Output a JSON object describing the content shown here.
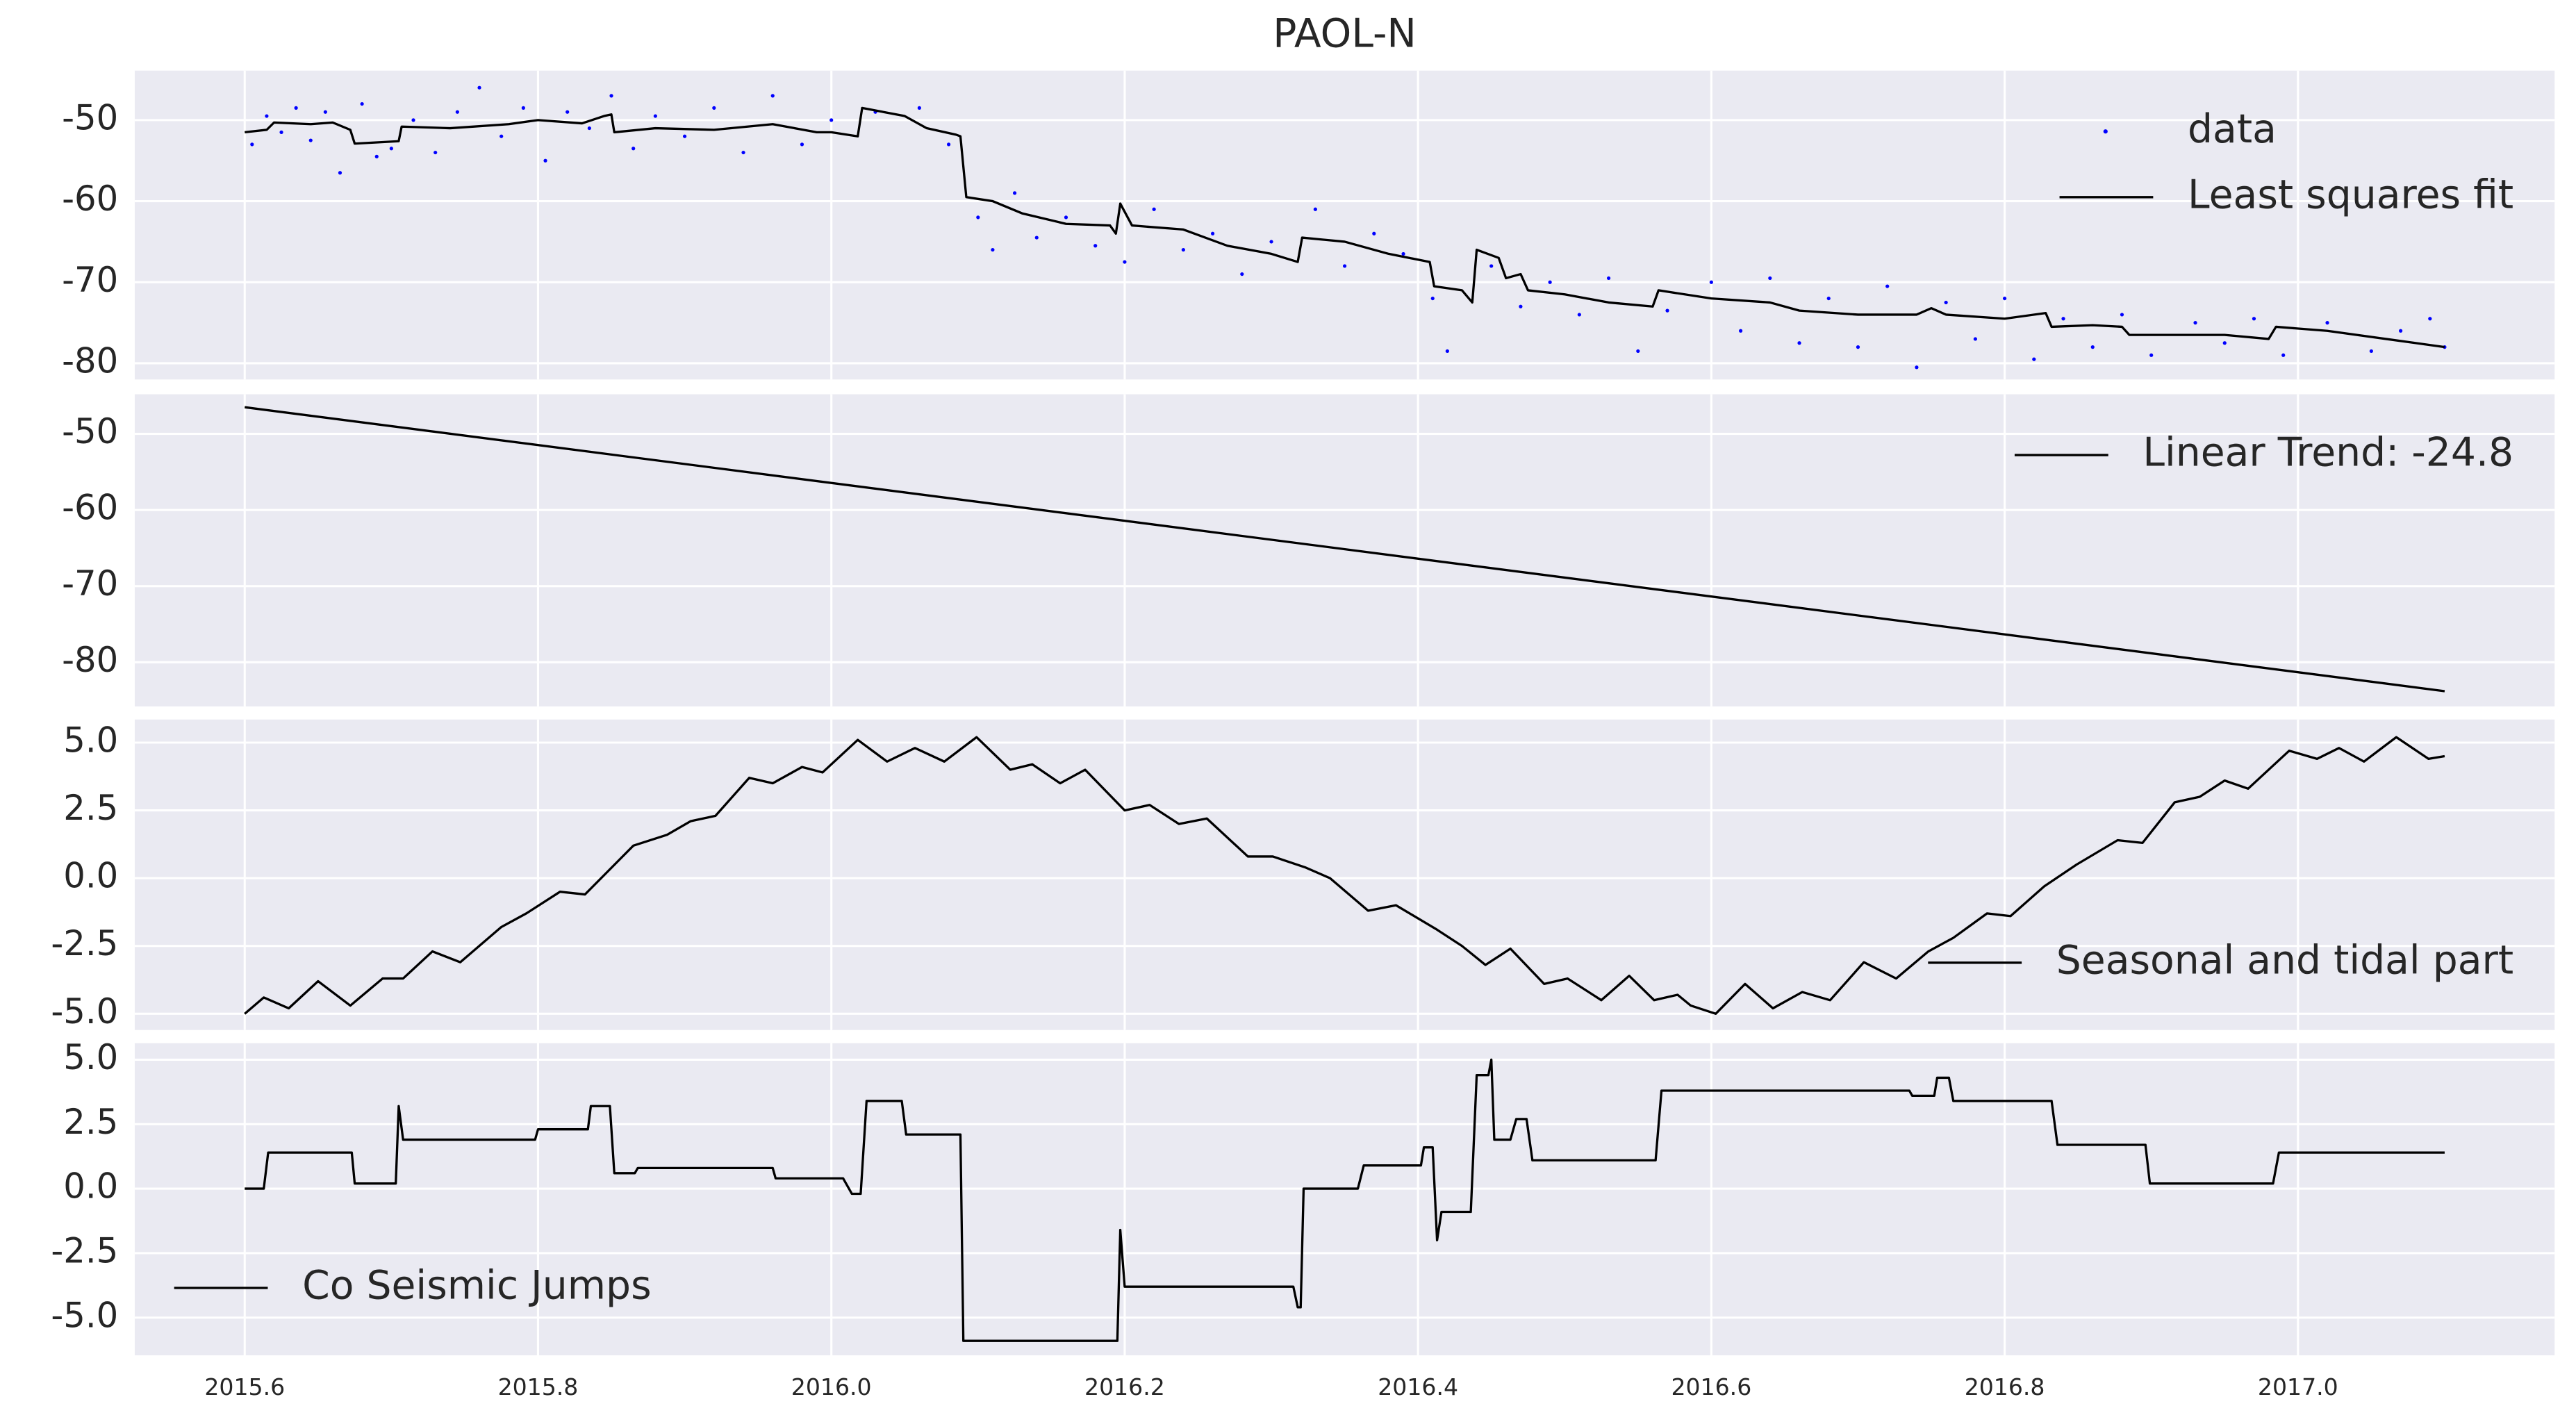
{
  "chart_data": [
    {
      "type": "line",
      "title": "PAOL-N",
      "legend": "upper right",
      "grid": true,
      "xlim": [
        2015.525,
        2017.175
      ],
      "ylim": [
        -82.0,
        -43.9
      ],
      "yticks": [
        -50,
        -60,
        -70,
        -80
      ],
      "series": [
        {
          "name": "data",
          "type": "scatter",
          "color": "#0000ff",
          "x": [
            2015.605,
            2015.615,
            2015.625,
            2015.635,
            2015.645,
            2015.655,
            2015.665,
            2015.68,
            2015.69,
            2015.7,
            2015.715,
            2015.73,
            2015.745,
            2015.76,
            2015.775,
            2015.79,
            2015.805,
            2015.82,
            2015.835,
            2015.85,
            2015.865,
            2015.88,
            2015.9,
            2015.92,
            2015.94,
            2015.96,
            2015.98,
            2016.0,
            2016.03,
            2016.06,
            2016.08,
            2016.1,
            2016.11,
            2016.125,
            2016.14,
            2016.16,
            2016.18,
            2016.2,
            2016.22,
            2016.24,
            2016.26,
            2016.28,
            2016.3,
            2016.33,
            2016.35,
            2016.37,
            2016.39,
            2016.41,
            2016.42,
            2016.45,
            2016.47,
            2016.49,
            2016.51,
            2016.53,
            2016.55,
            2016.57,
            2016.6,
            2016.62,
            2016.64,
            2016.66,
            2016.68,
            2016.7,
            2016.72,
            2016.74,
            2016.76,
            2016.78,
            2016.8,
            2016.82,
            2016.84,
            2016.86,
            2016.88,
            2016.9,
            2016.93,
            2016.95,
            2016.97,
            2016.99,
            2017.02,
            2017.05,
            2017.07,
            2017.09,
            2017.1
          ],
          "values": [
            -53,
            -49.5,
            -51.5,
            -48.5,
            -52.5,
            -49,
            -56.5,
            -48,
            -54.5,
            -53.5,
            -50,
            -54,
            -49,
            -46,
            -52,
            -48.5,
            -55,
            -49,
            -51,
            -47,
            -53.5,
            -49.5,
            -52,
            -48.5,
            -54,
            -47,
            -53,
            -50,
            -49,
            -48.5,
            -53,
            -62,
            -66,
            -59,
            -64.5,
            -62,
            -65.5,
            -67.5,
            -61,
            -66,
            -64,
            -69,
            -65,
            -61,
            -68,
            -64,
            -66.5,
            -72,
            -78.5,
            -68,
            -73,
            -70,
            -74,
            -69.5,
            -78.5,
            -73.5,
            -70,
            -76,
            -69.5,
            -77.5,
            -72,
            -78,
            -70.5,
            -80.5,
            -72.5,
            -77,
            -72,
            -79.5,
            -74.5,
            -78,
            -74,
            -79,
            -75,
            -77.5,
            -74.5,
            -79,
            -75,
            -78.5,
            -76,
            -74.5,
            -78
          ]
        },
        {
          "name": "Least squares fit",
          "type": "line",
          "color": "#000000",
          "x": [
            2015.6,
            2015.615,
            2015.62,
            2015.645,
            2015.66,
            2015.672,
            2015.675,
            2015.705,
            2015.707,
            2015.74,
            2015.78,
            2015.8,
            2015.83,
            2015.845,
            2015.85,
            2015.852,
            2015.88,
            2015.92,
            2015.96,
            2015.99,
            2016.0,
            2016.018,
            2016.021,
            2016.05,
            2016.065,
            2016.085,
            2016.088,
            2016.092,
            2016.11,
            2016.13,
            2016.16,
            2016.19,
            2016.194,
            2016.197,
            2016.205,
            2016.24,
            2016.27,
            2016.3,
            2016.318,
            2016.321,
            2016.35,
            2016.38,
            2016.408,
            2016.411,
            2016.43,
            2016.437,
            2016.44,
            2016.455,
            2016.46,
            2016.47,
            2016.475,
            2016.5,
            2016.53,
            2016.56,
            2016.564,
            2016.6,
            2016.64,
            2016.66,
            2016.7,
            2016.74,
            2016.75,
            2016.76,
            2016.8,
            2016.828,
            2016.832,
            2016.86,
            2016.88,
            2016.885,
            2016.95,
            2016.98,
            2016.985,
            2017.02,
            2017.06,
            2017.08,
            2017.1
          ],
          "values": [
            -51.5,
            -51.2,
            -50.3,
            -50.5,
            -50.3,
            -51.2,
            -52.9,
            -52.6,
            -50.8,
            -51.0,
            -50.5,
            -50.0,
            -50.4,
            -49.5,
            -49.3,
            -51.5,
            -51.0,
            -51.2,
            -50.5,
            -51.5,
            -51.5,
            -52.0,
            -48.5,
            -49.5,
            -51.0,
            -51.8,
            -52.0,
            -59.5,
            -60.0,
            -61.5,
            -62.8,
            -63.0,
            -64.0,
            -60.3,
            -63.0,
            -63.5,
            -65.5,
            -66.5,
            -67.5,
            -64.5,
            -65.0,
            -66.5,
            -67.5,
            -70.5,
            -71.0,
            -72.5,
            -66.0,
            -67.0,
            -69.5,
            -69.0,
            -71.0,
            -71.5,
            -72.5,
            -73.0,
            -71.0,
            -72.0,
            -72.5,
            -73.5,
            -74.0,
            -74.0,
            -73.2,
            -74.0,
            -74.5,
            -73.8,
            -75.5,
            -75.3,
            -75.5,
            -76.5,
            -76.5,
            -77.0,
            -75.5,
            -76.0,
            -77.0,
            -77.5,
            -78.0
          ]
        }
      ]
    },
    {
      "type": "line",
      "legend": "upper right",
      "grid": true,
      "xlim": [
        2015.525,
        2017.175
      ],
      "ylim": [
        -85.8,
        -44.8
      ],
      "yticks": [
        -50,
        -60,
        -70,
        -80
      ],
      "series": [
        {
          "name": "Linear Trend: -24.8",
          "type": "line",
          "color": "#000000",
          "x": [
            2015.6,
            2017.1
          ],
          "values": [
            -46.5,
            -83.8
          ]
        }
      ]
    },
    {
      "type": "line",
      "legend": "lower right",
      "grid": true,
      "xlim": [
        2015.525,
        2017.175
      ],
      "ylim": [
        -5.6,
        5.85
      ],
      "yticks": [
        {
          "value": 5,
          "label": "5.0"
        },
        2.5,
        {
          "value": 0,
          "label": "0.0"
        },
        -2.5,
        {
          "value": -5,
          "label": "-5.0"
        }
      ],
      "series": [
        {
          "name": "Seasonal and tidal part",
          "type": "line",
          "color": "#000000",
          "x": [
            2015.6,
            2015.613,
            2015.63,
            2015.65,
            2015.672,
            2015.694,
            2015.708,
            2015.728,
            2015.747,
            2015.775,
            2015.792,
            2015.815,
            2015.832,
            2015.865,
            2015.888,
            2015.904,
            2015.921,
            2015.944,
            2015.96,
            2015.98,
            2015.994,
            2016.018,
            2016.038,
            2016.057,
            2016.077,
            2016.099,
            2016.122,
            2016.137,
            2016.156,
            2016.173,
            2016.2,
            2016.217,
            2016.237,
            2016.256,
            2016.284,
            2016.301,
            2016.323,
            2016.34,
            2016.366,
            2016.385,
            2016.413,
            2016.43,
            2016.446,
            2016.463,
            2016.486,
            2016.502,
            2016.525,
            2016.544,
            2016.561,
            2016.577,
            2016.586,
            2016.603,
            2016.623,
            2016.642,
            2016.662,
            2016.681,
            2016.704,
            2016.726,
            2016.748,
            2016.765,
            2016.788,
            2016.804,
            2016.827,
            2016.849,
            2016.877,
            2016.894,
            2016.916,
            2016.933,
            2016.95,
            2016.966,
            2016.994,
            2017.013,
            2017.028,
            2017.045,
            2017.067,
            2017.089,
            2017.1
          ],
          "values": [
            -5.0,
            -4.4,
            -4.8,
            -3.8,
            -4.7,
            -3.7,
            -3.7,
            -2.7,
            -3.1,
            -1.8,
            -1.3,
            -0.5,
            -0.6,
            1.2,
            1.6,
            2.1,
            2.3,
            3.7,
            3.5,
            4.1,
            3.9,
            5.1,
            4.3,
            4.8,
            4.3,
            5.2,
            4.0,
            4.2,
            3.5,
            4.0,
            2.5,
            2.7,
            2.0,
            2.2,
            0.8,
            0.8,
            0.4,
            0.0,
            -1.2,
            -1.0,
            -1.9,
            -2.5,
            -3.2,
            -2.6,
            -3.9,
            -3.7,
            -4.5,
            -3.6,
            -4.5,
            -4.3,
            -4.7,
            -5.0,
            -3.9,
            -4.8,
            -4.2,
            -4.5,
            -3.1,
            -3.7,
            -2.7,
            -2.2,
            -1.3,
            -1.4,
            -0.3,
            0.5,
            1.4,
            1.3,
            2.8,
            3.0,
            3.6,
            3.3,
            4.7,
            4.4,
            4.8,
            4.3,
            5.2,
            4.4,
            4.5
          ]
        }
      ]
    },
    {
      "type": "line",
      "legend": "lower left",
      "grid": true,
      "xlim": [
        2015.525,
        2017.175
      ],
      "ylim": [
        -6.46,
        5.64
      ],
      "yticks": [
        {
          "value": 5,
          "label": "5.0"
        },
        2.5,
        {
          "value": 0,
          "label": "0.0"
        },
        -2.5,
        {
          "value": -5,
          "label": "-5.0"
        }
      ],
      "xticks": [
        2015.6,
        2015.8,
        {
          "value": 2016,
          "label": "2016.0"
        },
        2016.2,
        2016.4,
        2016.6,
        2016.8,
        {
          "value": 2017,
          "label": "2017.0"
        }
      ],
      "series": [
        {
          "name": "Co Seismic Jumps",
          "type": "line",
          "color": "#000000",
          "x": [
            2015.6,
            2015.613,
            2015.616,
            2015.673,
            2015.675,
            2015.703,
            2015.705,
            2015.708,
            2015.798,
            2015.8,
            2015.834,
            2015.836,
            2015.849,
            2015.852,
            2015.866,
            2015.868,
            2015.96,
            2015.962,
            2016.008,
            2016.014,
            2016.02,
            2016.024,
            2016.048,
            2016.051,
            2016.088,
            2016.09,
            2016.195,
            2016.197,
            2016.2,
            2016.315,
            2016.318,
            2016.32,
            2016.322,
            2016.359,
            2016.363,
            2016.402,
            2016.404,
            2016.41,
            2016.413,
            2016.416,
            2016.436,
            2016.44,
            2016.448,
            2016.45,
            2016.452,
            2016.463,
            2016.467,
            2016.474,
            2016.478,
            2016.562,
            2016.566,
            2016.735,
            2016.737,
            2016.752,
            2016.754,
            2016.762,
            2016.765,
            2016.832,
            2016.836,
            2016.896,
            2016.899,
            2016.983,
            2016.987,
            2017.1
          ],
          "values": [
            0,
            0,
            1.4,
            1.4,
            0.2,
            0.2,
            3.2,
            1.9,
            1.9,
            2.3,
            2.3,
            3.2,
            3.2,
            0.6,
            0.6,
            0.8,
            0.8,
            0.4,
            0.4,
            -0.2,
            -0.2,
            3.4,
            3.4,
            2.1,
            2.1,
            -5.9,
            -5.9,
            -1.6,
            -3.8,
            -3.8,
            -4.6,
            -4.6,
            0.0,
            0.0,
            0.9,
            0.9,
            1.6,
            1.6,
            -2.0,
            -0.9,
            -0.9,
            4.4,
            4.4,
            5.0,
            1.9,
            1.9,
            2.7,
            2.7,
            1.1,
            1.1,
            3.8,
            3.8,
            3.6,
            3.6,
            4.3,
            4.3,
            3.4,
            3.4,
            1.7,
            1.7,
            0.2,
            0.2,
            1.4,
            1.4
          ]
        }
      ]
    }
  ]
}
